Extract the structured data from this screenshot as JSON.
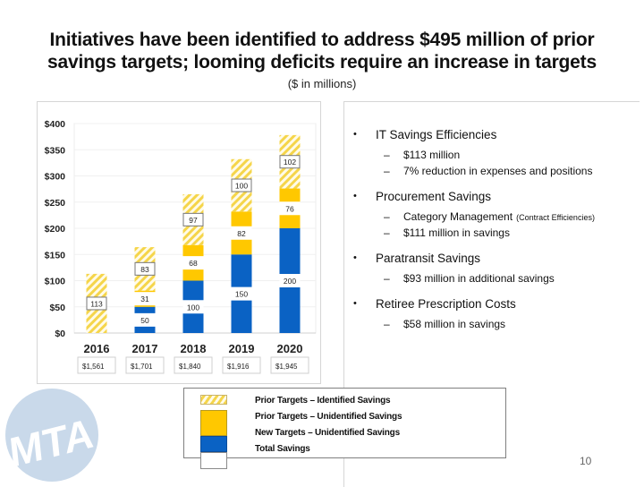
{
  "title_line1": "Initiatives have been identified to address $495 million of prior",
  "title_line2": "savings targets; looming deficits require an increase in targets",
  "subtitle": "($ in millions)",
  "page_number": "10",
  "logo_text": "MTA",
  "colors": {
    "hatch": "#f5d54a",
    "yellow": "#ffc800",
    "blue": "#0a62c4",
    "logo": "#c9d9ea"
  },
  "bullets": [
    {
      "label": "IT Savings Efficiencies",
      "subs": [
        {
          "text": "$113 million",
          "note": ""
        },
        {
          "text": "7% reduction in expenses and positions",
          "note": ""
        }
      ]
    },
    {
      "label": "Procurement Savings",
      "subs": [
        {
          "text": "Category Management",
          "note": "(Contract Efficiencies)"
        },
        {
          "text": "$111 million in savings",
          "note": ""
        }
      ]
    },
    {
      "label": "Paratransit Savings",
      "subs": [
        {
          "text": "$93 million in additional savings",
          "note": ""
        }
      ]
    },
    {
      "label": "Retiree Prescription Costs",
      "subs": [
        {
          "text": "$58 million in savings",
          "note": ""
        }
      ]
    }
  ],
  "legend": [
    "Prior Targets – Identified Savings",
    "Prior Targets – Unidentified Savings",
    "New Targets – Unidentified Savings",
    "Total Savings"
  ],
  "chart_data": {
    "type": "bar",
    "stacked": true,
    "title": "",
    "xlabel": "",
    "ylabel": "",
    "ylim": [
      0,
      400
    ],
    "yticks": [
      0,
      50,
      100,
      150,
      200,
      250,
      300,
      350,
      400
    ],
    "ytick_labels": [
      "$0",
      "$50",
      "$100",
      "$150",
      "$200",
      "$250",
      "$300",
      "$350",
      "$400"
    ],
    "grid": true,
    "categories": [
      "2016",
      "2017",
      "2018",
      "2019",
      "2020"
    ],
    "category_totals": [
      "$1,561",
      "$1,701",
      "$1,840",
      "$1,916",
      "$1,945"
    ],
    "series": [
      {
        "name": "Blue",
        "color": "#0a62c4",
        "pattern": "solid",
        "values": [
          0,
          50,
          100,
          150,
          200
        ]
      },
      {
        "name": "Yellow",
        "color": "#ffc800",
        "pattern": "solid",
        "values": [
          0,
          31,
          68,
          82,
          76
        ]
      },
      {
        "name": "Hatched",
        "color": "#f5d54a",
        "pattern": "hatch",
        "values": [
          113,
          83,
          97,
          100,
          102
        ]
      }
    ]
  }
}
